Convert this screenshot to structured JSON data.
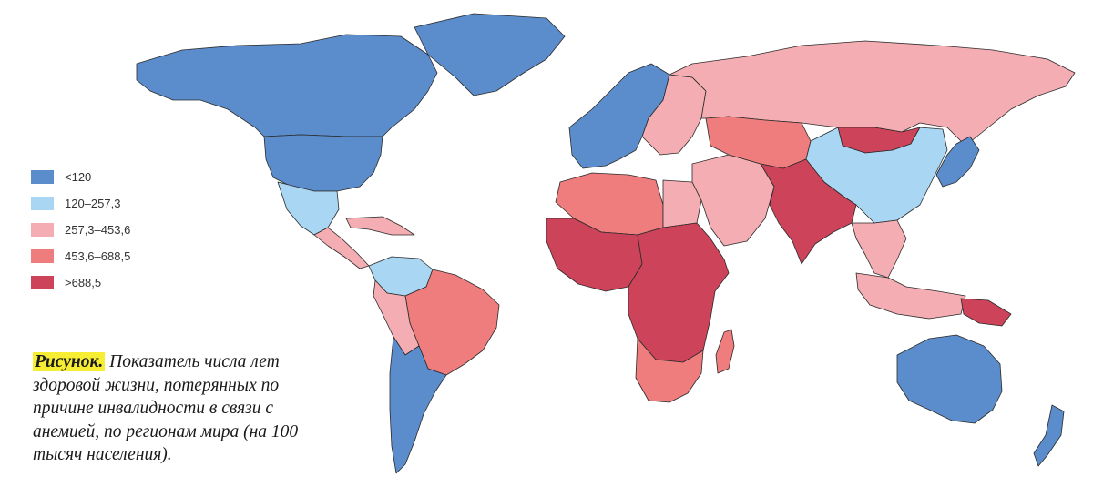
{
  "colors": {
    "c1": "#5b8ccb",
    "c2": "#a9d6f2",
    "c3": "#f4adb2",
    "c4": "#ef7d7d",
    "c5": "#cd4359"
  },
  "legend": [
    {
      "key": "c1",
      "label": "<120"
    },
    {
      "key": "c2",
      "label": "120–257,3"
    },
    {
      "key": "c3",
      "label": "257,3–453,6"
    },
    {
      "key": "c4",
      "label": "453,6–688,5"
    },
    {
      "key": "c5",
      "label": ">688,5"
    }
  ],
  "caption": {
    "label": "Рисунок.",
    "text": "Показатель числа лет здоровой жизни, потерянных по причине инвалидности в связи с анемией, по регионам мира (на 100 тысяч населения)."
  },
  "regions": [
    {
      "name": "region-north-america",
      "cat": "c1"
    },
    {
      "name": "region-usa",
      "cat": "c1"
    },
    {
      "name": "region-greenland",
      "cat": "c1"
    },
    {
      "name": "region-mexico",
      "cat": "c2"
    },
    {
      "name": "region-central-america",
      "cat": "c3"
    },
    {
      "name": "region-caribbean",
      "cat": "c3"
    },
    {
      "name": "region-venezuela-colombia",
      "cat": "c2"
    },
    {
      "name": "region-brazil",
      "cat": "c4"
    },
    {
      "name": "region-peru-bolivia",
      "cat": "c3"
    },
    {
      "name": "region-southern-cone",
      "cat": "c1"
    },
    {
      "name": "region-western-europe",
      "cat": "c1"
    },
    {
      "name": "region-eastern-europe",
      "cat": "c3"
    },
    {
      "name": "region-russia",
      "cat": "c3"
    },
    {
      "name": "region-north-africa",
      "cat": "c4"
    },
    {
      "name": "region-egypt",
      "cat": "c3"
    },
    {
      "name": "region-middle-east",
      "cat": "c3"
    },
    {
      "name": "region-west-africa",
      "cat": "c5"
    },
    {
      "name": "region-central-east-africa",
      "cat": "c5"
    },
    {
      "name": "region-southern-africa",
      "cat": "c4"
    },
    {
      "name": "region-madagascar",
      "cat": "c4"
    },
    {
      "name": "region-central-asia",
      "cat": "c4"
    },
    {
      "name": "region-mongolia",
      "cat": "c5"
    },
    {
      "name": "region-south-asia",
      "cat": "c5"
    },
    {
      "name": "region-china",
      "cat": "c2"
    },
    {
      "name": "region-japan-korea",
      "cat": "c1"
    },
    {
      "name": "region-southeast-asia",
      "cat": "c3"
    },
    {
      "name": "region-indonesia",
      "cat": "c3"
    },
    {
      "name": "region-papua",
      "cat": "c5"
    },
    {
      "name": "region-australia",
      "cat": "c1"
    },
    {
      "name": "region-new-zealand",
      "cat": "c1"
    }
  ]
}
